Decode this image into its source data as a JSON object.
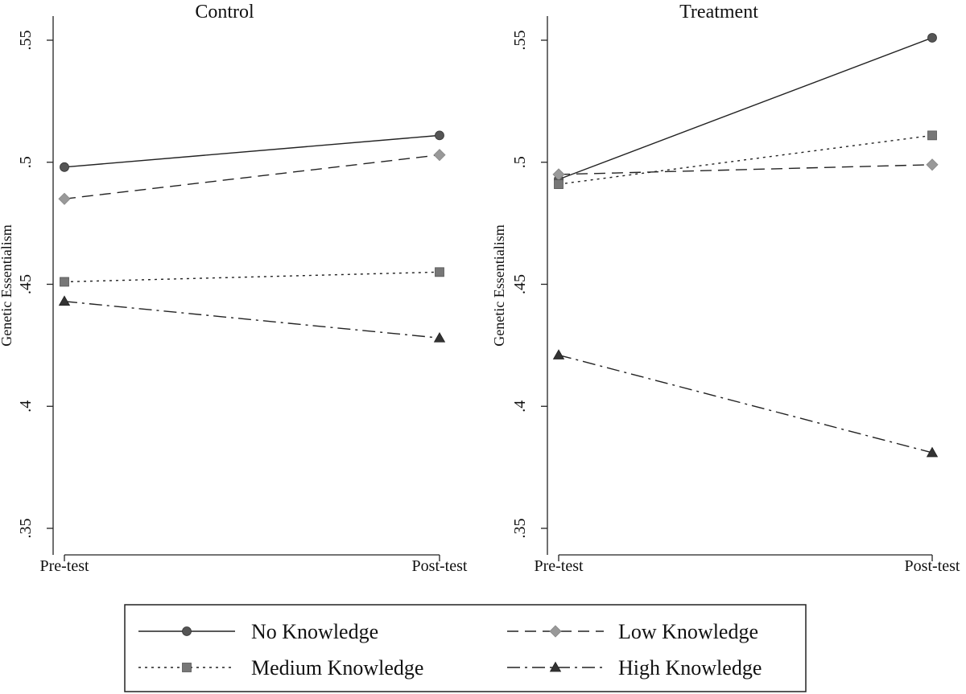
{
  "figure": {
    "legend_title": "",
    "ytick_labels": [
      ".35",
      ".4",
      ".45",
      ".5",
      ".55"
    ]
  },
  "chart_data": [
    {
      "type": "line",
      "title": "Control",
      "xlabel": "",
      "ylabel": "Genetic Essentialism",
      "categories": [
        "Pre-test",
        "Post-test"
      ],
      "ylim": [
        0.35,
        0.55
      ],
      "yticks": [
        0.35,
        0.4,
        0.45,
        0.5,
        0.55
      ],
      "grid": false,
      "legend_position": "bottom",
      "series": [
        {
          "name": "No Knowledge",
          "values": [
            0.498,
            0.511
          ],
          "marker": "circle",
          "dash": "solid",
          "color": "#555555"
        },
        {
          "name": "Low Knowledge",
          "values": [
            0.485,
            0.503
          ],
          "marker": "diamond",
          "dash": "dashed",
          "color": "#999999"
        },
        {
          "name": "Medium Knowledge",
          "values": [
            0.451,
            0.455
          ],
          "marker": "square",
          "dash": "dotted",
          "color": "#777777"
        },
        {
          "name": "High Knowledge",
          "values": [
            0.443,
            0.428
          ],
          "marker": "triangle",
          "dash": "dashdot",
          "color": "#333333"
        }
      ]
    },
    {
      "type": "line",
      "title": "Treatment",
      "xlabel": "",
      "ylabel": "Genetic Essentialism",
      "categories": [
        "Pre-test",
        "Post-test"
      ],
      "ylim": [
        0.35,
        0.55
      ],
      "yticks": [
        0.35,
        0.4,
        0.45,
        0.5,
        0.55
      ],
      "grid": false,
      "legend_position": "bottom",
      "series": [
        {
          "name": "No Knowledge",
          "values": [
            0.493,
            0.551
          ],
          "marker": "circle",
          "dash": "solid",
          "color": "#555555"
        },
        {
          "name": "Low Knowledge",
          "values": [
            0.495,
            0.499
          ],
          "marker": "diamond",
          "dash": "dashed",
          "color": "#999999"
        },
        {
          "name": "Medium Knowledge",
          "values": [
            0.491,
            0.511
          ],
          "marker": "square",
          "dash": "dotted",
          "color": "#777777"
        },
        {
          "name": "High Knowledge",
          "values": [
            0.421,
            0.381
          ],
          "marker": "triangle",
          "dash": "dashdot",
          "color": "#333333"
        }
      ]
    }
  ],
  "legend": {
    "items": [
      {
        "label": "No Knowledge",
        "marker": "circle",
        "dash": "solid",
        "color": "#555555"
      },
      {
        "label": "Low Knowledge",
        "marker": "diamond",
        "dash": "dashed",
        "color": "#999999"
      },
      {
        "label": "Medium Knowledge",
        "marker": "square",
        "dash": "dotted",
        "color": "#777777"
      },
      {
        "label": "High Knowledge",
        "marker": "triangle",
        "dash": "dashdot",
        "color": "#333333"
      }
    ]
  }
}
